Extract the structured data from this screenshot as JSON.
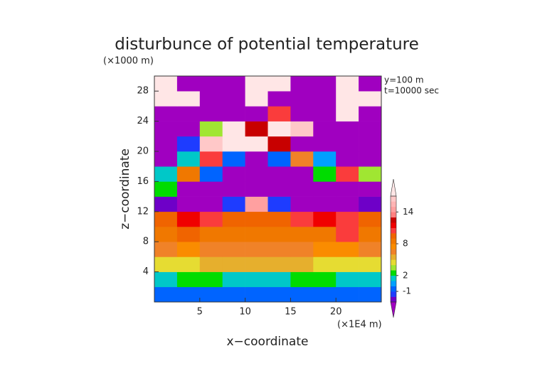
{
  "chart_data": {
    "type": "contour",
    "title": "disturbunce of potential temperature",
    "xlabel": "x−coordinate",
    "ylabel": "z−coordinate",
    "x_unit": "(×1E4 m)",
    "y_unit": "(×1000 m)",
    "annotations": [
      "y=100 m",
      "t=10000 sec"
    ],
    "xlim": [
      0,
      25
    ],
    "ylim": [
      0,
      30
    ],
    "xticks": [
      5,
      10,
      15,
      20
    ],
    "yticks": [
      4,
      8,
      12,
      16,
      20,
      24,
      28
    ],
    "x": [
      1.25,
      3.75,
      6.25,
      8.75,
      11.25,
      13.75,
      16.25,
      18.75,
      21.25,
      23.75
    ],
    "z": [
      1,
      3,
      5,
      7,
      9,
      11,
      13,
      15,
      17,
      19,
      21,
      23,
      25,
      27,
      29
    ],
    "values": [
      [
        -1,
        -1,
        -0.5,
        -1,
        -1,
        -1,
        -1,
        -1,
        -0.5,
        -1
      ],
      [
        1,
        2,
        2,
        1.5,
        1.5,
        1.5,
        2,
        2,
        1,
        1.5
      ],
      [
        4,
        4.5,
        5,
        5,
        5,
        5,
        5,
        4.5,
        4.5,
        4
      ],
      [
        6,
        7,
        6.5,
        6.5,
        6.5,
        6.5,
        6.5,
        7,
        7,
        6
      ],
      [
        8,
        9,
        8.5,
        8,
        8,
        8,
        8,
        8.5,
        10,
        8
      ],
      [
        9.5,
        11,
        10,
        9.5,
        9.5,
        9.5,
        10,
        11,
        10,
        9.5
      ],
      [
        -2.5,
        -4,
        -4,
        -2,
        14,
        -2,
        -4,
        -4,
        -4,
        -2.5
      ],
      [
        2,
        -4,
        -4,
        -4,
        -4,
        -4,
        -4,
        -4,
        -4,
        -4
      ],
      [
        1,
        8,
        -1,
        -4,
        -4,
        -4,
        -4,
        2,
        10,
        3
      ],
      [
        -4,
        1,
        10,
        -1,
        -4,
        -1,
        6,
        0,
        -4,
        -4
      ],
      [
        -4,
        -2,
        16,
        17,
        18,
        12,
        -4,
        -4,
        -4,
        -4
      ],
      [
        -4,
        -4,
        3,
        18,
        12,
        18,
        16,
        -4,
        -4,
        -4
      ],
      [
        -4,
        -4,
        -4,
        -4,
        -4,
        10,
        -4,
        -4,
        18,
        -4
      ],
      [
        18,
        18,
        -4,
        -4,
        18,
        -4,
        -4,
        -4,
        18,
        18
      ],
      [
        18,
        -4,
        -4,
        -4,
        18,
        18,
        -4,
        -4,
        18,
        -4
      ]
    ],
    "levels": [
      -3,
      -2,
      -1,
      0,
      1,
      2,
      3,
      4,
      5,
      6,
      7,
      8,
      9,
      10,
      11,
      12,
      13,
      14,
      15,
      16,
      17
    ],
    "colors": [
      "#a000c0",
      "#6e00c8",
      "#1e3cff",
      "#0064ff",
      "#00a0ff",
      "#00c8c8",
      "#00dc00",
      "#a0e632",
      "#e6dc32",
      "#e6af2d",
      "#f08228",
      "#fa8c00",
      "#f07800",
      "#f06400",
      "#fa3c3c",
      "#f00000",
      "#c80000",
      "#ff8080",
      "#ffa0a0",
      "#ffb4b4",
      "#ffc8c8",
      "#ffe6e6"
    ],
    "colorbar_ticks": [
      -1,
      2,
      8,
      14
    ]
  }
}
